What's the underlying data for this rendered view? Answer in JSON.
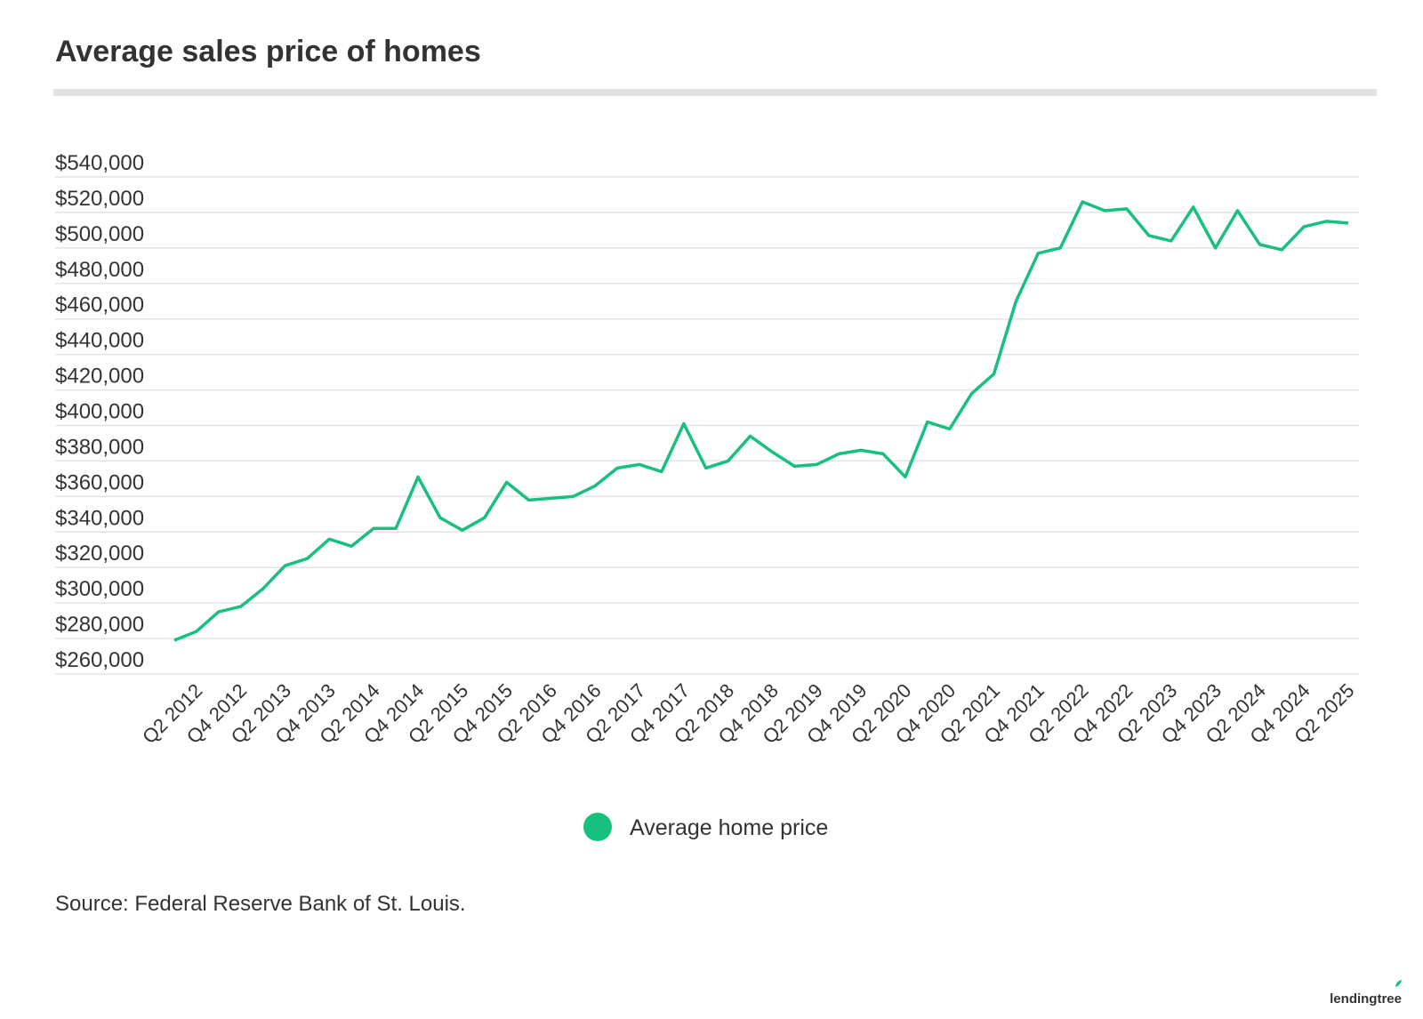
{
  "chart_data": {
    "type": "line",
    "title": "Average sales price of homes",
    "source": "Source: Federal Reserve Bank of St. Louis.",
    "logo": "lendingtree",
    "categories": [
      null,
      "Q2 2012",
      null,
      "Q4 2012",
      null,
      "Q2 2013",
      null,
      "Q4 2013",
      null,
      "Q2 2014",
      null,
      "Q4 2014",
      null,
      "Q2 2015",
      null,
      "Q4 2015",
      null,
      "Q2 2016",
      null,
      "Q4 2016",
      null,
      "Q2 2017",
      null,
      "Q4 2017",
      null,
      "Q2 2018",
      null,
      "Q4 2018",
      null,
      "Q2 2019",
      null,
      "Q4 2019",
      null,
      "Q2 2020",
      null,
      "Q4 2020",
      null,
      "Q2 2021",
      null,
      "Q4 2021",
      null,
      "Q2 2022",
      null,
      "Q4 2022",
      null,
      "Q2 2023",
      null,
      "Q4 2023",
      null,
      "Q2 2024",
      null,
      "Q4 2024",
      null,
      "Q2 2025"
    ],
    "series": [
      {
        "name": "Average home price",
        "color": "#17c07e",
        "values": [
          279000,
          284000,
          295000,
          298000,
          308000,
          321000,
          325000,
          336000,
          332000,
          342000,
          342000,
          371000,
          348000,
          341000,
          348000,
          368000,
          358000,
          359000,
          360000,
          366000,
          376000,
          378000,
          374000,
          401000,
          376000,
          380000,
          394000,
          385000,
          377000,
          378000,
          384000,
          386000,
          384000,
          371000,
          402000,
          398000,
          418000,
          429000,
          470000,
          497000,
          500000,
          526000,
          521000,
          522000,
          507000,
          504000,
          523000,
          500000,
          521000,
          502000,
          499000,
          512000,
          515000,
          514000
        ]
      }
    ],
    "ylim": [
      260000,
      540000
    ],
    "yticks": [
      {
        "value": 260000,
        "label": "$260,000"
      },
      {
        "value": 280000,
        "label": "$280,000"
      },
      {
        "value": 300000,
        "label": "$300,000"
      },
      {
        "value": 320000,
        "label": "$320,000"
      },
      {
        "value": 340000,
        "label": "$340,000"
      },
      {
        "value": 360000,
        "label": "$360,000"
      },
      {
        "value": 380000,
        "label": "$380,000"
      },
      {
        "value": 400000,
        "label": "$400,000"
      },
      {
        "value": 420000,
        "label": "$420,000"
      },
      {
        "value": 440000,
        "label": "$440,000"
      },
      {
        "value": 460000,
        "label": "$460,000"
      },
      {
        "value": 480000,
        "label": "$480,000"
      },
      {
        "value": 500000,
        "label": "$500,000"
      },
      {
        "value": 520000,
        "label": "$520,000"
      },
      {
        "value": 540000,
        "label": "$540,000"
      }
    ],
    "grid": true,
    "legend": "bottom"
  }
}
